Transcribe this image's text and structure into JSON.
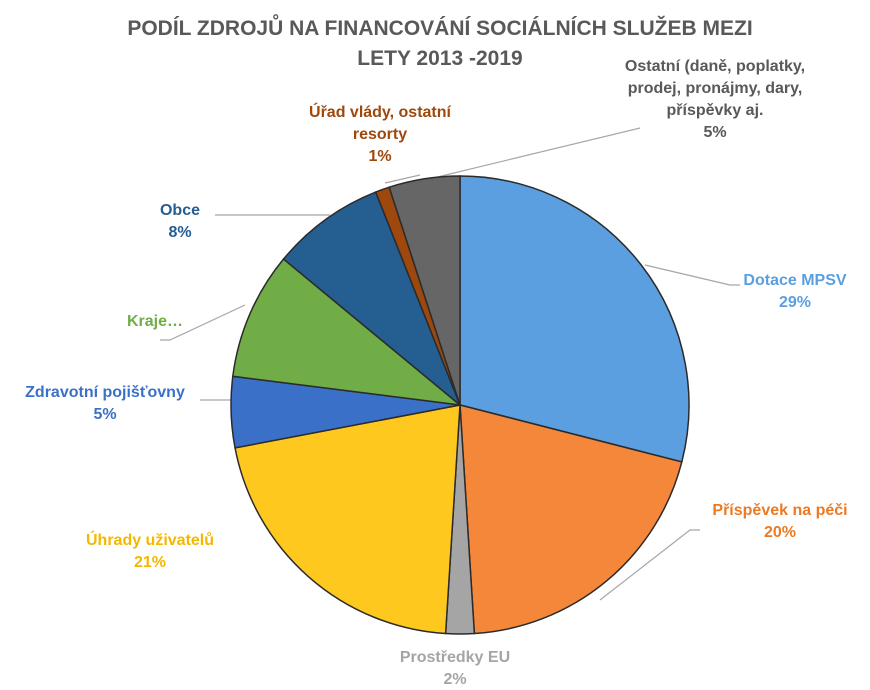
{
  "chart_data": {
    "type": "pie",
    "title": "PODÍL ZDROJŮ NA FINANCOVÁNÍ SOCIÁLNÍCH SLUŽEB MEZI LETY 2013 -2019",
    "categories": [
      "Dotace MPSV",
      "Příspěvek na péči",
      "Prostředky EU",
      "Úhrady uživatelů",
      "Zdravotní pojišťovny",
      "Kraje…",
      "Obce",
      "Úřad vlády, ostatní resorty",
      "Ostatní (daně, poplatky, prodej, pronájmy, dary, příspěvky aj."
    ],
    "values": [
      29,
      20,
      2,
      21,
      5,
      9,
      8,
      1,
      5
    ],
    "value_labels": [
      "29%",
      "20%",
      "2%",
      "21%",
      "5%",
      null,
      "8%",
      "1%",
      "5%"
    ],
    "colors": [
      "#5b9fe0",
      "#f5873a",
      "#a5a5a5",
      "#ffc81e",
      "#3b70c9",
      "#70ad47",
      "#255e91",
      "#9e480e",
      "#666666"
    ],
    "label_colors": [
      "#5b9fe0",
      "#ec7a25",
      "#a5a5a5",
      "#f2b800",
      "#3b70c9",
      "#70ad47",
      "#255e91",
      "#9e480e",
      "#595959"
    ]
  }
}
